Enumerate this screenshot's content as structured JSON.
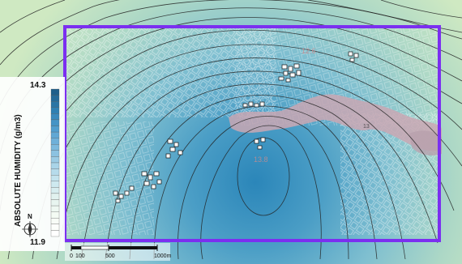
{
  "legend": {
    "title": "ABSOLUTE HUMIDITY (g/m3)",
    "max_label": "14.3",
    "min_label": "11.9",
    "max_value": 14.3,
    "min_value": 11.9,
    "ramp_colors": [
      "#1f5f8b",
      "#2f7fb1",
      "#4d9ccd",
      "#78b6dc",
      "#a2d0e6",
      "#c8e6ef",
      "#e3f3ef",
      "#f5fbf4",
      "#ffffff"
    ]
  },
  "scale_bar": {
    "labels": [
      "0",
      "100",
      "500",
      "1000m"
    ]
  },
  "north_arrow": {
    "label": "N",
    "icon": "compass-rose-icon"
  },
  "annotations": {
    "peak_label": "12.6",
    "center_label": "13.8",
    "east_label": "13"
  },
  "colors": {
    "study_area_border": "#7b2ff0",
    "contour_line": "#222222",
    "water_body": "#c9a7b3",
    "background_low": "#c8e8c0",
    "background_high": "#2a86b8"
  }
}
